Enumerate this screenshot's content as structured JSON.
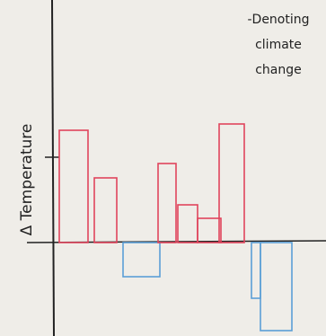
{
  "chart_data": {
    "type": "bar",
    "y_label": "Δ Temperature",
    "annotation_lines": [
      "-Denoting",
      "climate",
      "change"
    ],
    "categories": [
      null,
      null,
      null,
      null,
      null,
      null,
      null,
      null,
      null
    ],
    "values": [
      125,
      72,
      -38,
      88,
      42,
      27,
      132,
      -62,
      -98
    ],
    "colors": [
      "#e0445c",
      "#e0445c",
      "#5b9fd6",
      "#e0445c",
      "#e0445c",
      "#e0445c",
      "#e0445c",
      "#5b9fd6",
      "#5b9fd6"
    ],
    "ylim": [
      -104,
      270
    ]
  }
}
